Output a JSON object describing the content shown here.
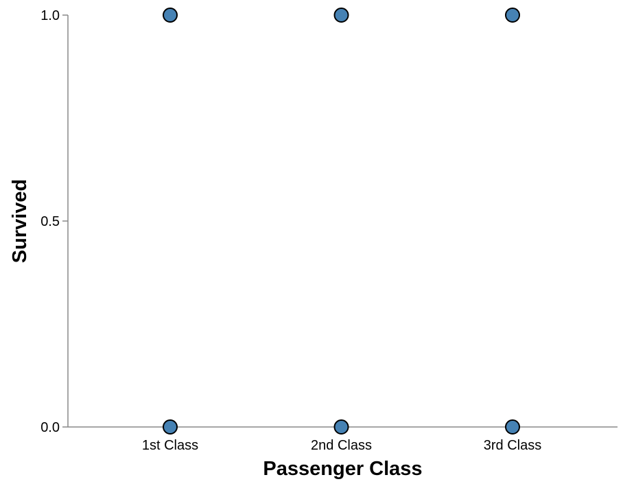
{
  "chart_data": {
    "type": "scatter",
    "xlabel": "Passenger Class",
    "ylabel": "Survived",
    "categories": [
      "1st Class",
      "2nd Class",
      "3rd Class"
    ],
    "points": [
      {
        "x": "1st Class",
        "y": 1.0
      },
      {
        "x": "2nd Class",
        "y": 1.0
      },
      {
        "x": "3rd Class",
        "y": 1.0
      },
      {
        "x": "1st Class",
        "y": 0.0
      },
      {
        "x": "2nd Class",
        "y": 0.0
      },
      {
        "x": "3rd Class",
        "y": 0.0
      }
    ],
    "ylim": [
      0,
      1
    ],
    "yticks": [
      {
        "value": 0.0,
        "label": "0.0"
      },
      {
        "value": 0.5,
        "label": "0.5"
      },
      {
        "value": 1.0,
        "label": "1.0"
      }
    ],
    "point_color": "#4682b4",
    "grid": false,
    "legend": "none"
  }
}
